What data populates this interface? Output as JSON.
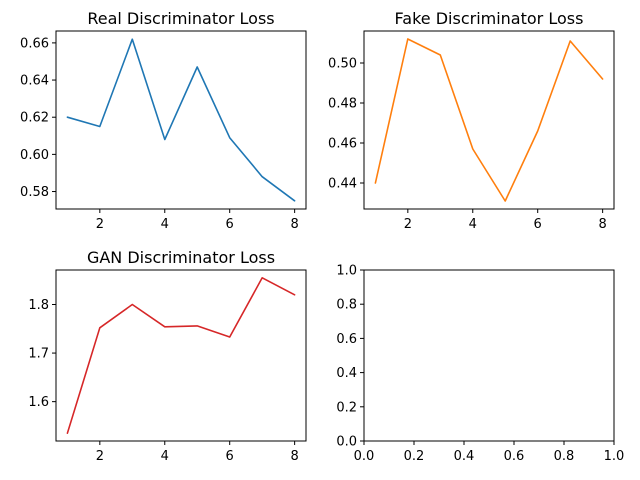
{
  "chart_data": [
    {
      "type": "line",
      "title": "Real Discriminator Loss",
      "xlabel": "",
      "ylabel": "",
      "x": [
        1,
        2,
        3,
        4,
        5,
        6,
        7,
        8
      ],
      "series": [
        {
          "values": [
            0.62,
            0.615,
            0.662,
            0.608,
            0.647,
            0.609,
            0.588,
            0.575
          ],
          "color": "#1f77b4"
        }
      ],
      "xlim": [
        0.65,
        8.35
      ],
      "ylim": [
        0.5706,
        0.6664
      ],
      "xticks": [
        2,
        4,
        6,
        8
      ],
      "xtick_labels": [
        "2",
        "4",
        "6",
        "8"
      ],
      "yticks": [
        0.58,
        0.6,
        0.62,
        0.64,
        0.66
      ],
      "ytick_labels": [
        "0.58",
        "0.60",
        "0.62",
        "0.64",
        "0.66"
      ],
      "grid": false
    },
    {
      "type": "line",
      "title": "Fake Discriminator Loss",
      "xlabel": "",
      "ylabel": "",
      "x": [
        1,
        2,
        3,
        4,
        5,
        6,
        7,
        8
      ],
      "series": [
        {
          "values": [
            0.44,
            0.512,
            0.504,
            0.457,
            0.431,
            0.466,
            0.511,
            0.492
          ],
          "color": "#ff7f0e"
        }
      ],
      "xlim": [
        0.65,
        8.35
      ],
      "ylim": [
        0.427,
        0.516
      ],
      "xticks": [
        2,
        4,
        6,
        8
      ],
      "xtick_labels": [
        "2",
        "4",
        "6",
        "8"
      ],
      "yticks": [
        0.44,
        0.46,
        0.48,
        0.5
      ],
      "ytick_labels": [
        "0.44",
        "0.46",
        "0.48",
        "0.50"
      ],
      "grid": false
    },
    {
      "type": "line",
      "title": "GAN Discriminator Loss",
      "xlabel": "",
      "ylabel": "",
      "x": [
        1,
        2,
        3,
        4,
        5,
        6,
        7,
        8
      ],
      "series": [
        {
          "values": [
            1.535,
            1.752,
            1.8,
            1.754,
            1.756,
            1.733,
            1.855,
            1.82
          ],
          "color": "#d62728"
        }
      ],
      "xlim": [
        0.65,
        8.35
      ],
      "ylim": [
        1.519,
        1.871
      ],
      "xticks": [
        2,
        4,
        6,
        8
      ],
      "xtick_labels": [
        "2",
        "4",
        "6",
        "8"
      ],
      "yticks": [
        1.6,
        1.7,
        1.8
      ],
      "ytick_labels": [
        "1.6",
        "1.7",
        "1.8"
      ],
      "grid": false
    },
    {
      "type": "line",
      "title": "",
      "xlabel": "",
      "ylabel": "",
      "x": [],
      "series": [],
      "xlim": [
        0.0,
        1.0
      ],
      "ylim": [
        0.0,
        1.0
      ],
      "xticks": [
        0.0,
        0.2,
        0.4,
        0.6,
        0.8,
        1.0
      ],
      "xtick_labels": [
        "0.0",
        "0.2",
        "0.4",
        "0.6",
        "0.8",
        "1.0"
      ],
      "yticks": [
        0.0,
        0.2,
        0.4,
        0.6,
        0.8,
        1.0
      ],
      "ytick_labels": [
        "0.0",
        "0.2",
        "0.4",
        "0.6",
        "0.8",
        "1.0"
      ],
      "grid": false
    }
  ]
}
